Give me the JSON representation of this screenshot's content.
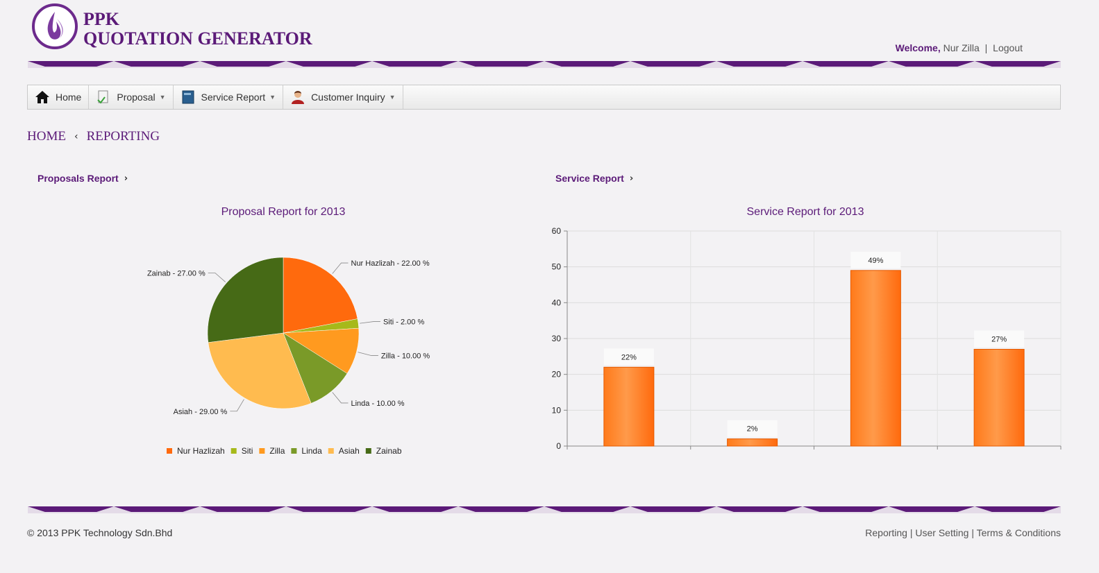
{
  "header": {
    "logo_line1": "PPK",
    "logo_line2": "QUOTATION GENERATOR",
    "welcome_label": "Welcome,",
    "user_name": "Nur Zilla",
    "separator": "|",
    "logout_label": "Logout"
  },
  "nav": {
    "items": [
      {
        "label": "Home",
        "icon": "home-icon"
      },
      {
        "label": "Proposal",
        "icon": "proposal-icon"
      },
      {
        "label": "Service Report",
        "icon": "book-icon"
      },
      {
        "label": "Customer Inquiry",
        "icon": "user-icon"
      }
    ]
  },
  "breadcrumb": {
    "home": "HOME",
    "current": "REPORTING"
  },
  "sections": {
    "proposals_link": "Proposals Report",
    "service_link": "Service Report"
  },
  "colors": {
    "brand_purple": "#5b1a78",
    "orange": "#ff6a0d",
    "bar_light": "#ff9a4a"
  },
  "chart_data": [
    {
      "type": "pie",
      "title": "Proposal Report for 2013",
      "categories": [
        "Nur Hazlizah",
        "Siti",
        "Zilla",
        "Linda",
        "Asiah",
        "Zainab"
      ],
      "values": [
        22,
        2,
        10,
        10,
        29,
        27
      ],
      "labels": [
        "Nur Hazlizah - 22.00 %",
        "Siti - 2.00 %",
        "Zilla - 10.00 %",
        "Linda - 10.00 %",
        "Asiah - 29.00 %",
        "Zainab - 27.00 %"
      ],
      "colors": [
        "#ff6a0d",
        "#a6b91a",
        "#ff9a1f",
        "#7a9a28",
        "#ffbb4f",
        "#466a16"
      ],
      "legend": "bottom"
    },
    {
      "type": "bar",
      "title": "Service Report for 2013",
      "values": [
        22,
        2,
        49,
        27
      ],
      "data_labels": [
        "22%",
        "2%",
        "49%",
        "27%"
      ],
      "ylim": [
        0,
        60
      ],
      "yticks": [
        "0",
        "10",
        "20",
        "30",
        "40",
        "50",
        "60"
      ],
      "grid": true
    }
  ],
  "footer": {
    "copyright": "© 2013 PPK Technology Sdn.Bhd",
    "links": [
      "Reporting",
      "User Setting",
      "Terms & Conditions"
    ],
    "separator": " | "
  }
}
